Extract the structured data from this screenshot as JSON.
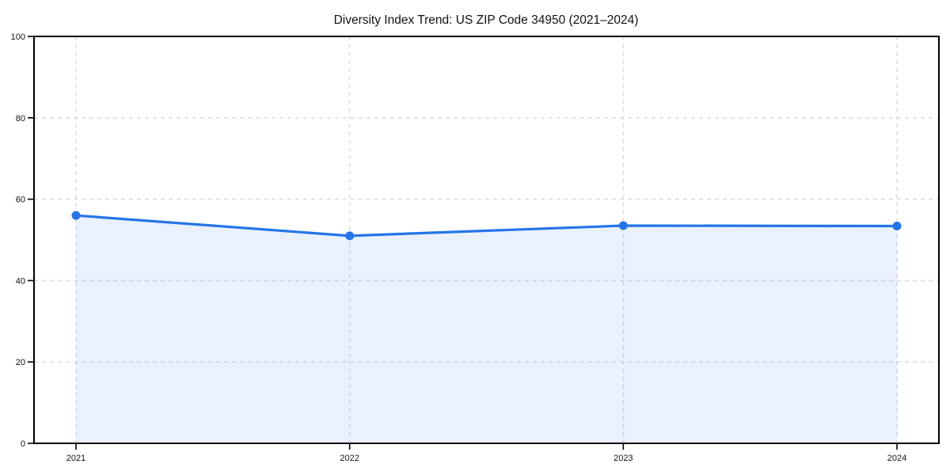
{
  "chart_data": {
    "type": "area",
    "title": "Diversity Index Trend: US ZIP Code 34950 (2021–2024)",
    "categories": [
      "2021",
      "2022",
      "2023",
      "2024"
    ],
    "series": [
      {
        "name": "Diversity Index",
        "values": [
          56.0,
          51.0,
          53.5,
          53.4
        ]
      }
    ],
    "xlabel": "",
    "ylabel": "",
    "ylim": [
      0,
      100
    ],
    "yticks": [
      0,
      20,
      40,
      60,
      80,
      100
    ],
    "grid": true,
    "grid_style": "dashed",
    "legend": "none",
    "marker": "circle",
    "colors": {
      "line": "#2575e8",
      "marker": "#2575e8",
      "fill": "#2575e8",
      "fill_opacity": 0.1,
      "gridline": "#dedede",
      "spine": "#000000",
      "background": "#ffffff",
      "text": "#111111"
    }
  }
}
